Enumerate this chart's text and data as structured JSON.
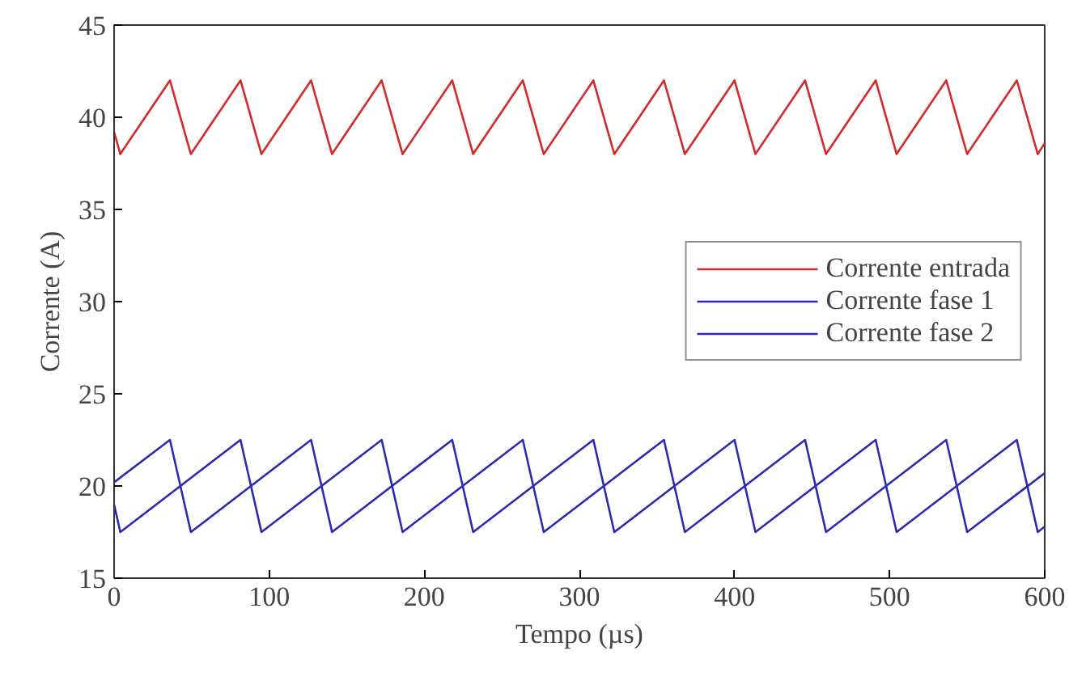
{
  "chart_data": {
    "type": "line",
    "xlabel": "Tempo (µs)",
    "ylabel": "Corrente (A)",
    "xlim": [
      0,
      600
    ],
    "ylim": [
      15,
      45
    ],
    "xticks": [
      0,
      100,
      200,
      300,
      400,
      500,
      600
    ],
    "yticks": [
      15,
      20,
      25,
      30,
      35,
      40,
      45
    ],
    "grid": false,
    "legend": "right",
    "line_style": "solid",
    "marker": "none",
    "series": [
      {
        "name": "Corrente entrada",
        "color": "#d42a2a",
        "x": [
          0,
          4,
          36,
          49.5,
          81.5,
          95,
          127,
          140.5,
          172.5,
          186,
          218,
          231.5,
          263.5,
          277,
          309,
          322.5,
          354.5,
          368,
          400,
          413.5,
          445.5,
          459,
          491,
          504.5,
          536.5,
          550,
          582,
          595.5,
          600
        ],
        "values": [
          39.2,
          38,
          42,
          38,
          42,
          38,
          42,
          38,
          42,
          38,
          42,
          38,
          42,
          38,
          42,
          38,
          42,
          38,
          42,
          38,
          42,
          38,
          42,
          38,
          42,
          38,
          42,
          38,
          38.6
        ]
      },
      {
        "name": "Corrente fase 1",
        "color": "#2a2ab4",
        "x": [
          0,
          36,
          49.5,
          127,
          140.5,
          218,
          231.5,
          309,
          322.5,
          400,
          413.5,
          491,
          504.5,
          582,
          595.5,
          600
        ],
        "values": [
          20.2,
          22.5,
          17.5,
          22.5,
          17.5,
          22.5,
          17.5,
          22.5,
          17.5,
          22.5,
          17.5,
          22.5,
          17.5,
          22.5,
          17.5,
          17.8
        ]
      },
      {
        "name": "Corrente fase 2",
        "color": "#2a2ab4",
        "x": [
          0,
          4,
          81.5,
          95,
          172.5,
          186,
          263.5,
          277,
          354.5,
          368,
          445.5,
          459,
          536.5,
          550,
          600
        ],
        "values": [
          19,
          17.5,
          22.5,
          17.5,
          22.5,
          17.5,
          22.5,
          17.5,
          22.5,
          17.5,
          22.5,
          17.5,
          22.5,
          17.5,
          20.7
        ]
      }
    ]
  }
}
